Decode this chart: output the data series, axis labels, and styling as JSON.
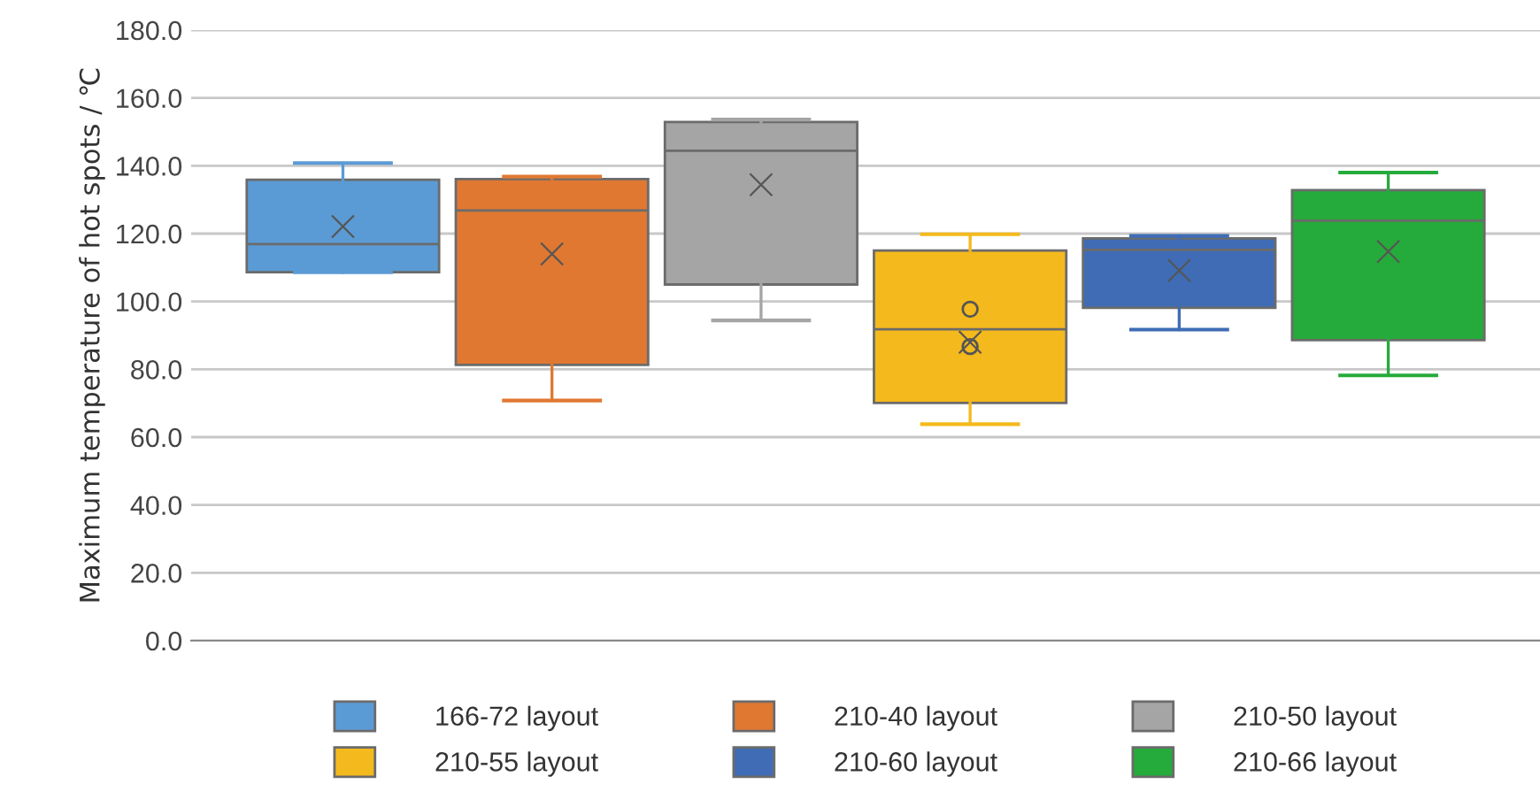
{
  "chart_data": {
    "type": "box",
    "ylabel": "Maximum temperature of hot spots / ℃",
    "categories": [
      null
    ],
    "ylim": [
      0,
      180
    ],
    "yticks": [
      {
        "value": 0,
        "label": "0.0"
      },
      {
        "value": 20,
        "label": "20.0"
      },
      {
        "value": 40,
        "label": "40.0"
      },
      {
        "value": 60,
        "label": "60.0"
      },
      {
        "value": 80,
        "label": "80.0"
      },
      {
        "value": 100,
        "label": "100.0"
      },
      {
        "value": 120,
        "label": "120.0"
      },
      {
        "value": 140,
        "label": "140.0"
      },
      {
        "value": 160,
        "label": "160.0"
      },
      {
        "value": 180,
        "label": "180.0"
      }
    ],
    "grid": "y",
    "legend": "bottom",
    "series": [
      {
        "name": "166-72 layout",
        "color": "#5b9bd5",
        "boxes": [
          {
            "low": 108.6,
            "q1": 108.6,
            "median": 116.9,
            "q3": 135.9,
            "high": 140.8,
            "mean": 122.1
          }
        ]
      },
      {
        "name": "210-40 layout",
        "color": "#e07832",
        "boxes": [
          {
            "low": 70.8,
            "q1": 81.3,
            "median": 126.8,
            "q3": 136.1,
            "high": 136.8,
            "mean": 114.0
          }
        ]
      },
      {
        "name": "210-50 layout",
        "color": "#a5a5a5",
        "boxes": [
          {
            "low": 94.4,
            "q1": 105.0,
            "median": 144.4,
            "q3": 152.9,
            "high": 153.6,
            "mean": 134.4
          }
        ]
      },
      {
        "name": "210-55 layout",
        "color": "#f4b91c",
        "boxes": [
          {
            "low": 63.8,
            "q1": 70.1,
            "median": 91.8,
            "q3": 115.0,
            "high": 119.8,
            "mean": 88.0,
            "outliers": [
              97.7,
              86.7
            ]
          }
        ]
      },
      {
        "name": "210-60 layout",
        "color": "#3f6cb5",
        "boxes": [
          {
            "low": 91.7,
            "q1": 98.1,
            "median": 115.2,
            "q3": 118.6,
            "high": 119.3,
            "mean": 109.1
          }
        ]
      },
      {
        "name": "210-66 layout",
        "color": "#25ab3b",
        "boxes": [
          {
            "low": 78.2,
            "q1": 88.6,
            "median": 123.8,
            "q3": 132.8,
            "high": 138.0,
            "mean": 114.7
          }
        ]
      }
    ]
  }
}
